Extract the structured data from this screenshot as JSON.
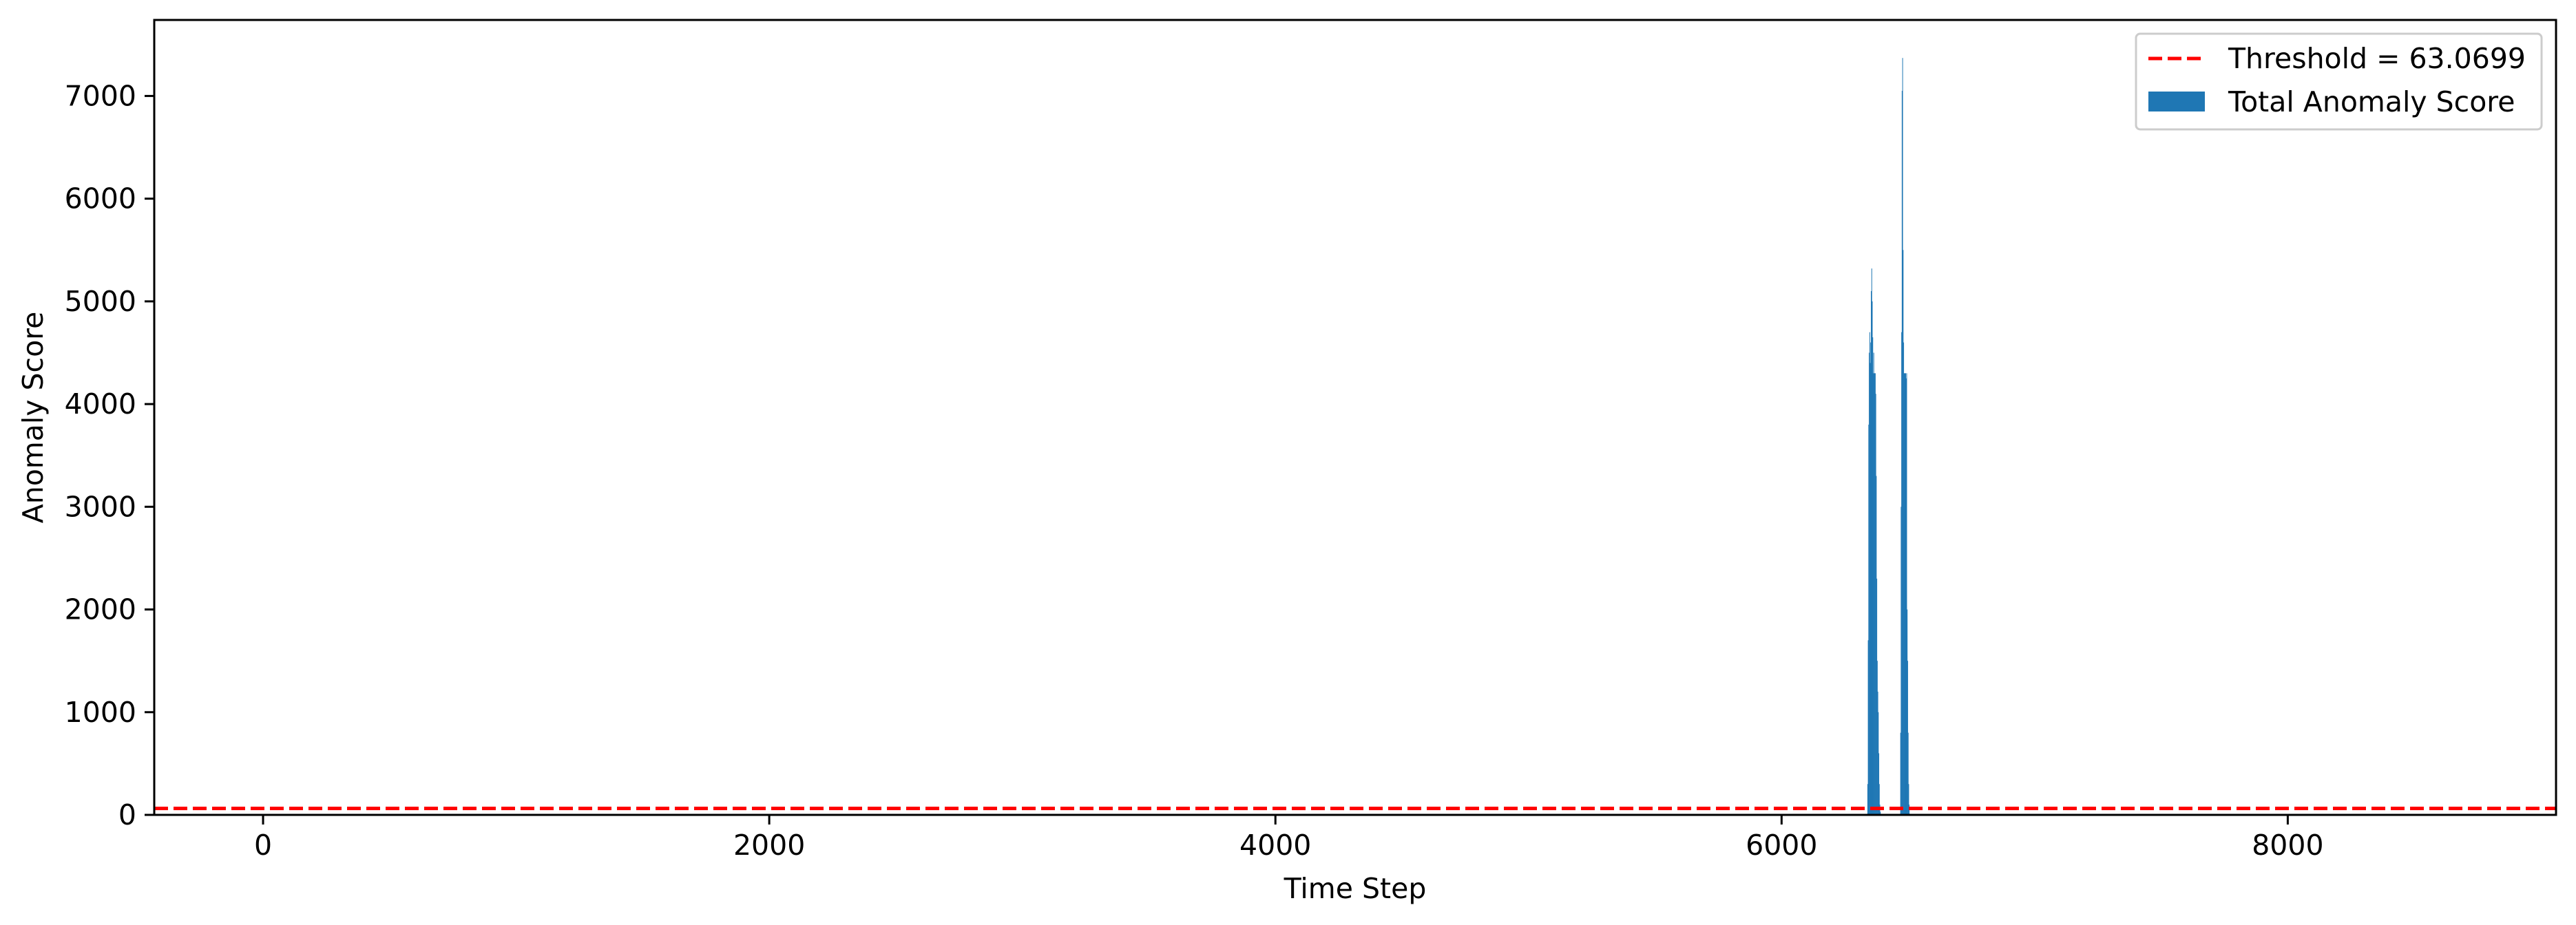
{
  "chart_data": {
    "type": "bar",
    "xlabel": "Time Step",
    "ylabel": "Anomaly Score",
    "xlim": [
      -430,
      9060
    ],
    "ylim": [
      0,
      7740
    ],
    "xticks": [
      0,
      2000,
      4000,
      6000,
      8000
    ],
    "yticks": [
      0,
      1000,
      2000,
      3000,
      4000,
      5000,
      6000,
      7000
    ],
    "grid": false,
    "legend_position": "top-right",
    "threshold": {
      "label": "Threshold = 63.0699",
      "value": 63.0699,
      "color": "#ff0000",
      "style": "dashed"
    },
    "series": [
      {
        "name": "Total Anomaly Score",
        "color": "#1f77b4",
        "x": [
          6340,
          6342,
          6344,
          6346,
          6348,
          6350,
          6352,
          6354,
          6356,
          6358,
          6360,
          6362,
          6364,
          6366,
          6368,
          6370,
          6372,
          6374,
          6376,
          6378,
          6380,
          6382,
          6384,
          6386,
          6388,
          6390,
          6392,
          6394,
          6396,
          6398,
          6400,
          6402,
          6404,
          6406,
          6408,
          6410,
          6412,
          6414,
          6416,
          6418,
          6420,
          6470,
          6472,
          6474,
          6476,
          6478,
          6480,
          6482,
          6484,
          6486,
          6488,
          6490,
          6492,
          6494,
          6496,
          6498,
          6500,
          6502,
          6504,
          6506,
          6508,
          6510
        ],
        "values": [
          300,
          1700,
          3800,
          4500,
          4700,
          4400,
          4600,
          5100,
          5320,
          5000,
          4650,
          4300,
          4500,
          4300,
          4300,
          4300,
          4100,
          3300,
          2300,
          1500,
          1200,
          1000,
          600,
          300,
          100,
          30,
          0,
          0,
          0,
          0,
          0,
          0,
          0,
          0,
          0,
          0,
          0,
          0,
          0,
          0,
          0,
          800,
          3000,
          4700,
          7050,
          7370,
          5500,
          4600,
          4300,
          4300,
          4300,
          4300,
          4250,
          4300,
          2000,
          1500,
          800,
          300,
          100,
          0,
          0,
          0
        ]
      }
    ]
  }
}
